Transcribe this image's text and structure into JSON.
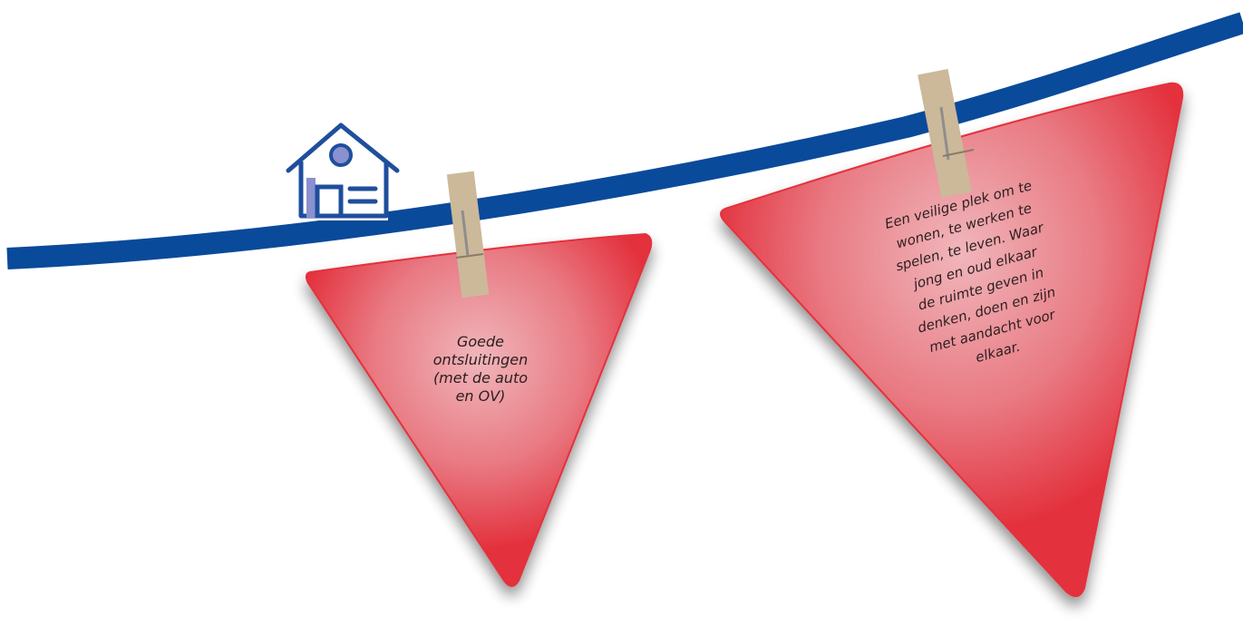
{
  "colors": {
    "line": "#0a4a9a",
    "flag": "#e3303c",
    "flag_glow": "#f0b6bb",
    "peg": "#cbb99a",
    "house": "#1f4e9c",
    "house_fill": "#ffffff",
    "house_window": "#8a90d0"
  },
  "icons": {
    "house": "house-icon"
  },
  "flag_left": {
    "lines": [
      "Goede",
      "ontsluitingen",
      "(met de auto",
      "en OV)"
    ]
  },
  "flag_right": {
    "lines": [
      "Een veilige plek om te",
      "wonen, te werken te",
      "spelen, te leven. Waar",
      "jong en oud elkaar",
      "de ruimte geven in",
      "denken, doen en zijn",
      "met aandacht voor",
      "elkaar."
    ]
  }
}
